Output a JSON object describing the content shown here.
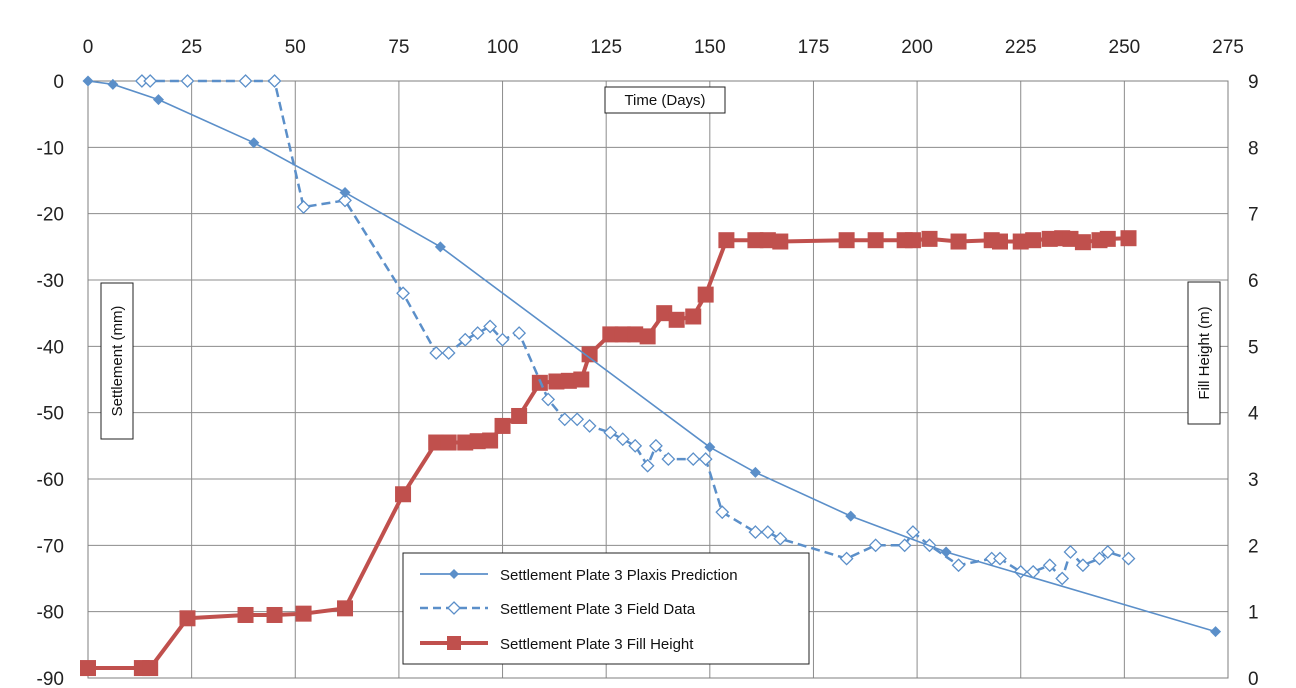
{
  "chart_data": {
    "type": "line",
    "title": "",
    "xlabel": "Time (Days)",
    "ylabel": "Settlement (mm)",
    "y2label": "Fill Height (m)",
    "xlim": [
      0,
      275
    ],
    "ylim": [
      -90,
      0
    ],
    "y2lim": [
      0,
      9
    ],
    "xticks": [
      0,
      25,
      50,
      75,
      100,
      125,
      150,
      175,
      200,
      225,
      250,
      275
    ],
    "yticks": [
      0,
      -10,
      -20,
      -30,
      -40,
      -50,
      -60,
      -70,
      -80,
      -90
    ],
    "y2ticks": [
      9,
      8,
      7,
      6,
      5,
      4,
      3,
      2,
      1,
      0
    ],
    "grid": true,
    "x_axis_position": "top",
    "legend_position": "bottom-center",
    "series": [
      {
        "name": "Settlement Plate 3 Plaxis Prediction",
        "axis": "left",
        "color": "#5b8fc9",
        "line": "solid",
        "marker": "filled-diamond",
        "x": [
          0,
          6,
          17,
          40,
          62,
          85,
          150,
          161,
          184,
          207,
          272
        ],
        "y": [
          0,
          -0.5,
          -2.8,
          -9.3,
          -16.8,
          -25,
          -55.2,
          -59,
          -65.6,
          -71,
          -83
        ]
      },
      {
        "name": "Settlement Plate 3 Field Data",
        "axis": "left",
        "color": "#5b8fc9",
        "line": "dashed",
        "marker": "open-diamond",
        "x": [
          13,
          15,
          24,
          38,
          45,
          52,
          62,
          76,
          84,
          87,
          91,
          94,
          97,
          100,
          104,
          111,
          115,
          118,
          121,
          126,
          129,
          132,
          135,
          137,
          140,
          146,
          149,
          153,
          161,
          164,
          167,
          183,
          190,
          197,
          199,
          203,
          210,
          218,
          220,
          225,
          228,
          232,
          235,
          237,
          240,
          244,
          246,
          251
        ],
        "y": [
          0,
          0,
          0,
          0,
          0,
          -19,
          -18,
          -32,
          -41,
          -41,
          -39,
          -38,
          -37,
          -39,
          -38,
          -48,
          -51,
          -51,
          -52,
          -53,
          -54,
          -55,
          -58,
          -55,
          -57,
          -57,
          -57,
          -65,
          -68,
          -68,
          -69,
          -72,
          -70,
          -70,
          -68,
          -70,
          -73,
          -72,
          -72,
          -74,
          -74,
          -73,
          -75,
          -71,
          -73,
          -72,
          -71,
          -72
        ]
      },
      {
        "name": "Settlement Plate 3 Fill Height",
        "axis": "right",
        "color": "#c0504d",
        "line": "solid",
        "marker": "filled-square",
        "x": [
          0,
          13,
          15,
          24,
          38,
          45,
          52,
          62,
          76,
          84,
          87,
          91,
          94,
          97,
          100,
          104,
          109,
          113,
          116,
          119,
          121,
          126,
          129,
          132,
          135,
          139,
          142,
          146,
          149,
          154,
          161,
          164,
          167,
          183,
          190,
          197,
          199,
          203,
          210,
          218,
          220,
          225,
          228,
          232,
          235,
          237,
          240,
          244,
          246,
          251
        ],
        "y": [
          0.15,
          0.15,
          0.15,
          0.9,
          0.95,
          0.95,
          0.97,
          1.05,
          2.77,
          3.55,
          3.55,
          3.55,
          3.57,
          3.58,
          3.8,
          3.95,
          4.45,
          4.47,
          4.48,
          4.5,
          4.88,
          5.18,
          5.18,
          5.18,
          5.15,
          5.5,
          5.4,
          5.45,
          5.78,
          6.6,
          6.6,
          6.6,
          6.58,
          6.6,
          6.6,
          6.6,
          6.6,
          6.62,
          6.58,
          6.6,
          6.58,
          6.58,
          6.6,
          6.62,
          6.63,
          6.62,
          6.57,
          6.6,
          6.62,
          6.63
        ]
      }
    ]
  }
}
